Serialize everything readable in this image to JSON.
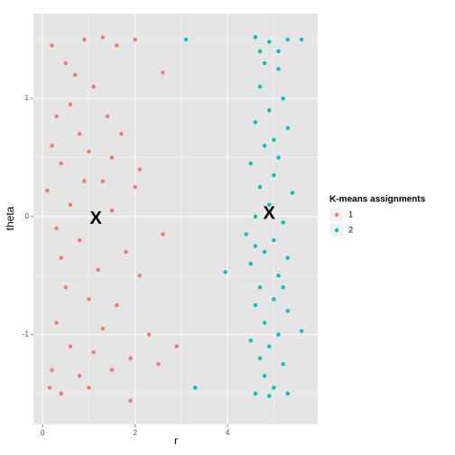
{
  "chart_data": {
    "type": "scatter",
    "x_label": "r",
    "y_label": "theta",
    "legend_title": "K-means assignments",
    "xlim": [
      -0.2,
      5.95
    ],
    "ylim": [
      -1.76,
      1.72
    ],
    "xticks": [
      0,
      2,
      4
    ],
    "yticks": [
      -1,
      0,
      1
    ],
    "grid": true,
    "series": [
      {
        "name": "1",
        "color": "#F8766D",
        "x": [
          0.2,
          0.5,
          0.9,
          1.3,
          1.6,
          2.0,
          2.6,
          0.7,
          1.1,
          0.3,
          0.6,
          1.4,
          0.8,
          1.7,
          0.2,
          1.0,
          1.5,
          2.1,
          0.4,
          0.9,
          1.3,
          2.0,
          0.1,
          0.6,
          1.5,
          2.6,
          0.3,
          0.8,
          1.8,
          0.4,
          1.2,
          2.1,
          0.5,
          1.0,
          1.6,
          0.3,
          1.3,
          2.3,
          0.6,
          1.1,
          1.9,
          2.9,
          0.2,
          0.8,
          1.5,
          2.5,
          0.4,
          1.0,
          1.9,
          0.15
        ],
        "values": [
          1.45,
          1.3,
          1.5,
          1.52,
          1.45,
          1.5,
          1.22,
          1.2,
          1.1,
          0.85,
          0.95,
          0.85,
          0.7,
          0.7,
          0.6,
          0.55,
          0.5,
          0.4,
          0.45,
          0.3,
          0.3,
          0.25,
          0.22,
          0.1,
          0.05,
          -0.15,
          -0.1,
          -0.2,
          -0.3,
          -0.35,
          -0.45,
          -0.5,
          -0.6,
          -0.7,
          -0.75,
          -0.9,
          -0.95,
          -1.0,
          -1.1,
          -1.15,
          -1.2,
          -1.1,
          -1.3,
          -1.35,
          -1.3,
          -1.25,
          -1.5,
          -1.45,
          -1.56,
          -1.45
        ]
      },
      {
        "name": "2",
        "color": "#00BFC4",
        "x": [
          3.1,
          4.6,
          4.9,
          5.3,
          5.6,
          4.8,
          5.1,
          4.7,
          5.2,
          4.9,
          4.6,
          5.3,
          4.8,
          5.1,
          4.5,
          5.0,
          4.7,
          5.4,
          4.9,
          4.6,
          5.2,
          4.4,
          5.0,
          4.8,
          5.3,
          4.5,
          3.95,
          5.1,
          4.7,
          5.0,
          4.6,
          5.3,
          4.8,
          5.1,
          4.5,
          5.6,
          4.9,
          4.7,
          5.2,
          4.8,
          5.0,
          3.3,
          4.6,
          5.3,
          4.9,
          5.1,
          4.7,
          5.0,
          4.6,
          5.2
        ],
        "values": [
          1.5,
          1.52,
          1.48,
          1.5,
          1.5,
          1.3,
          1.25,
          1.1,
          1.0,
          0.9,
          0.8,
          0.75,
          0.6,
          0.5,
          0.45,
          0.35,
          0.25,
          0.2,
          0.1,
          0.0,
          -0.05,
          -0.15,
          -0.2,
          -0.3,
          -0.35,
          -0.4,
          -0.47,
          -0.5,
          -0.6,
          -0.7,
          -0.75,
          -0.8,
          -0.9,
          -1.0,
          -1.05,
          -0.97,
          -1.1,
          -1.2,
          -1.25,
          -1.35,
          -1.45,
          -1.45,
          -1.5,
          -1.5,
          -1.52,
          1.4,
          1.4,
          0.65,
          -0.25,
          -0.6
        ]
      }
    ],
    "centroids": {
      "label": "X",
      "x": [
        1.15,
        4.9
      ],
      "values": [
        -0.02,
        0.02
      ]
    }
  }
}
